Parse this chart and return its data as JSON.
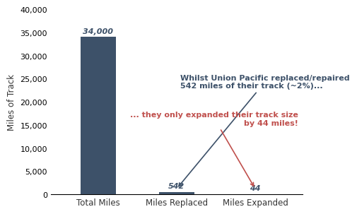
{
  "categories": [
    "Total Miles",
    "Miles Replaced",
    "Miles Expanded"
  ],
  "values": [
    34000,
    542,
    44
  ],
  "bar_color": "#3d5169",
  "bar_labels": [
    "34,000",
    "542",
    "44"
  ],
  "ylabel": "Miles of Track",
  "ylim": [
    0,
    40000
  ],
  "yticks": [
    0,
    5000,
    10000,
    15000,
    20000,
    25000,
    30000,
    35000,
    40000
  ],
  "annotation1_text": "Whilst Union Pacific replaced/repaired\n542 miles of their track (~2%)...",
  "annotation1_color": "#3d5169",
  "annotation2_text": "... they only expanded their track size\nby 44 miles!",
  "annotation2_color": "#c0504d",
  "background_color": "#ffffff"
}
